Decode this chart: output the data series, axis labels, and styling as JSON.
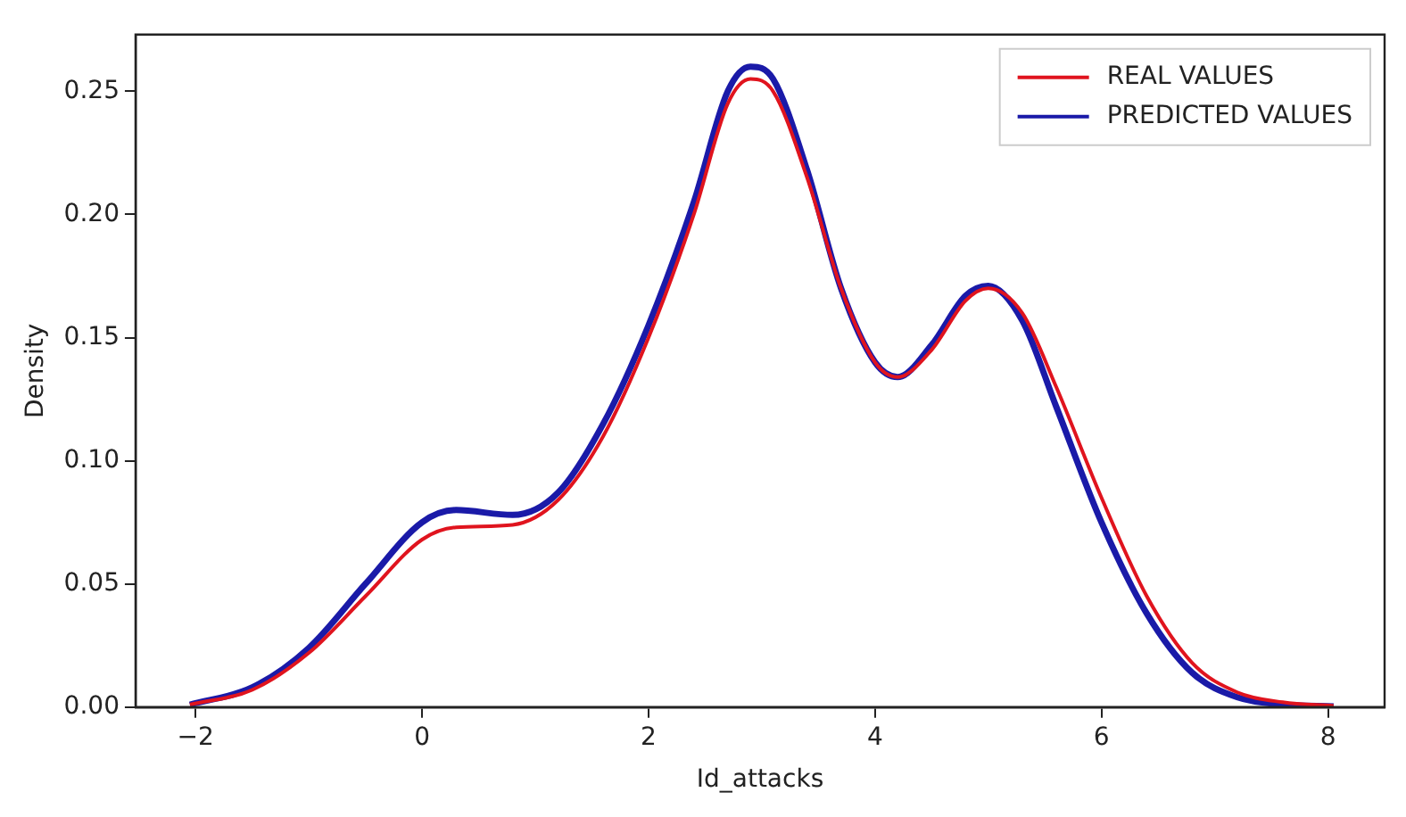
{
  "chart_data": {
    "type": "line",
    "xlabel": "Id_attacks",
    "ylabel": "Density",
    "xlim": [
      -2.53,
      8.5
    ],
    "xticks": [
      {
        "value": -2,
        "label": "−2"
      },
      0,
      2,
      4,
      6,
      8
    ],
    "ylim": [
      0,
      0.273
    ],
    "yticks": [
      {
        "value": 0,
        "label": "0.00"
      },
      0.05,
      {
        "value": 0.1,
        "label": "0.10"
      },
      0.15,
      {
        "value": 0.2,
        "label": "0.20"
      },
      0.25
    ],
    "grid": false,
    "legend": "top right",
    "marker": "none",
    "line_style": "solid",
    "series": [
      {
        "name": "REAL VALUES",
        "color": "#e0141e",
        "x": [
          -2.05,
          -1.5,
          -1,
          -0.5,
          0,
          0.3,
          0.8,
          1.2,
          1.6,
          2,
          2.4,
          2.7,
          2.9,
          3.1,
          3.4,
          3.7,
          4.0,
          4.2,
          4.5,
          4.8,
          5.0,
          5.3,
          5.6,
          6.0,
          6.4,
          6.8,
          7.2,
          7.6,
          8.05
        ],
        "values": [
          0.001,
          0.007,
          0.022,
          0.045,
          0.068,
          0.073,
          0.074,
          0.084,
          0.11,
          0.15,
          0.2,
          0.245,
          0.255,
          0.25,
          0.215,
          0.17,
          0.14,
          0.134,
          0.145,
          0.165,
          0.17,
          0.16,
          0.13,
          0.085,
          0.045,
          0.018,
          0.006,
          0.002,
          0.0005
        ]
      },
      {
        "name": "PREDICTED VALUES",
        "color": "#1a1aa8",
        "x": [
          -2.05,
          -1.5,
          -1,
          -0.5,
          0,
          0.3,
          0.8,
          1.2,
          1.6,
          2,
          2.4,
          2.7,
          2.9,
          3.1,
          3.4,
          3.7,
          4.0,
          4.2,
          4.5,
          4.8,
          5.0,
          5.3,
          5.6,
          6.0,
          6.4,
          6.8,
          7.2,
          7.6,
          8.05
        ],
        "values": [
          0.001,
          0.008,
          0.024,
          0.05,
          0.075,
          0.08,
          0.078,
          0.087,
          0.115,
          0.155,
          0.205,
          0.25,
          0.26,
          0.255,
          0.218,
          0.17,
          0.14,
          0.134,
          0.147,
          0.167,
          0.171,
          0.157,
          0.122,
          0.075,
          0.038,
          0.014,
          0.004,
          0.001,
          0.0003
        ]
      }
    ]
  }
}
